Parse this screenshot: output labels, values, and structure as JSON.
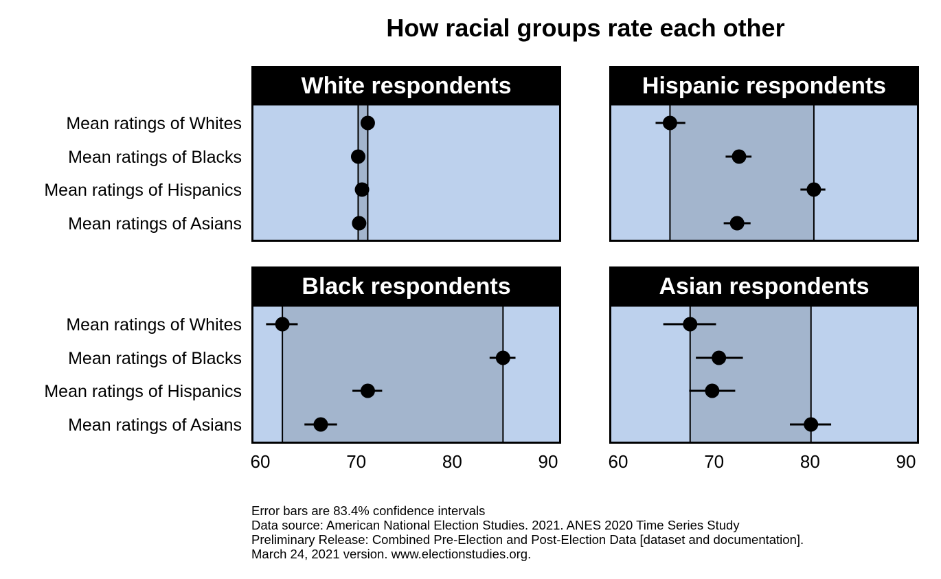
{
  "chart_data": {
    "type": "dot-plot with error bars",
    "title": "How racial groups rate each other",
    "xlim": [
      60,
      90
    ],
    "xticks": [
      60,
      70,
      80,
      90
    ],
    "row_labels": [
      "Mean ratings of Whites",
      "Mean ratings of Blacks",
      "Mean ratings of Hispanics",
      "Mean ratings of Asians"
    ],
    "panels": [
      {
        "title": "White respondents",
        "points": [
          {
            "label": "Mean ratings of Whites",
            "value": 71.2,
            "ci": [
              71.0,
              71.4
            ]
          },
          {
            "label": "Mean ratings of Blacks",
            "value": 70.2,
            "ci": [
              70.0,
              70.4
            ]
          },
          {
            "label": "Mean ratings of Hispanics",
            "value": 70.6,
            "ci": [
              70.4,
              70.8
            ]
          },
          {
            "label": "Mean ratings of Asians",
            "value": 70.3,
            "ci": [
              70.1,
              70.5
            ]
          }
        ],
        "reference_lines": [
          70.2,
          71.2
        ]
      },
      {
        "title": "Hispanic respondents",
        "points": [
          {
            "label": "Mean ratings of Whites",
            "value": 65.4,
            "ci": [
              63.9,
              67.0
            ]
          },
          {
            "label": "Mean ratings of Blacks",
            "value": 72.6,
            "ci": [
              71.2,
              73.9
            ]
          },
          {
            "label": "Mean ratings of Hispanics",
            "value": 80.4,
            "ci": [
              79.0,
              81.6
            ]
          },
          {
            "label": "Mean ratings of Asians",
            "value": 72.4,
            "ci": [
              71.0,
              73.8
            ]
          }
        ],
        "reference_lines": [
          65.4,
          80.4
        ]
      },
      {
        "title": "Black respondents",
        "points": [
          {
            "label": "Mean ratings of Whites",
            "value": 62.3,
            "ci": [
              60.6,
              63.9
            ]
          },
          {
            "label": "Mean ratings of Blacks",
            "value": 85.3,
            "ci": [
              83.9,
              86.6
            ]
          },
          {
            "label": "Mean ratings of Hispanics",
            "value": 71.2,
            "ci": [
              69.6,
              72.7
            ]
          },
          {
            "label": "Mean ratings of Asians",
            "value": 66.3,
            "ci": [
              64.6,
              68.0
            ]
          }
        ],
        "reference_lines": [
          62.3,
          85.3
        ]
      },
      {
        "title": "Asian respondents",
        "points": [
          {
            "label": "Mean ratings of Whites",
            "value": 67.5,
            "ci": [
              64.7,
              70.2
            ]
          },
          {
            "label": "Mean ratings of Blacks",
            "value": 70.5,
            "ci": [
              68.1,
              73.0
            ]
          },
          {
            "label": "Mean ratings of Hispanics",
            "value": 69.8,
            "ci": [
              67.4,
              72.2
            ]
          },
          {
            "label": "Mean ratings of Asians",
            "value": 80.1,
            "ci": [
              77.9,
              82.2
            ]
          }
        ],
        "reference_lines": [
          67.5,
          80.1
        ]
      }
    ],
    "colors": {
      "panel_bg": "#bdd1ed",
      "range_fill": "#a3b5cd",
      "header_bg": "#000000",
      "marker": "#000000"
    }
  },
  "notes": [
    "Error bars are 83.4% confidence intervals",
    "Data source: American National Election Studies. 2021. ANES 2020 Time Series Study",
    "Preliminary Release: Combined Pre-Election and Post-Election Data [dataset and documentation].",
    "March 24, 2021 version. www.electionstudies.org."
  ]
}
